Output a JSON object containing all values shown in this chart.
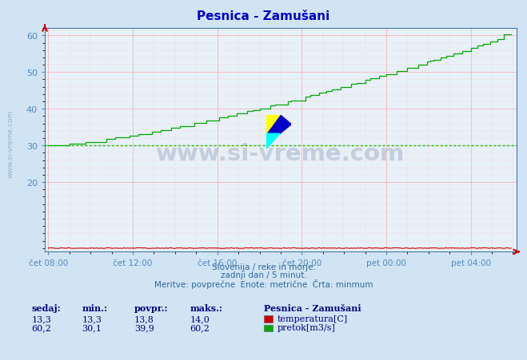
{
  "title": "Pesnica - Zamušani",
  "bg_color": "#d0e4f4",
  "plot_bg_color": "#e8f0f8",
  "title_color": "#0000cc",
  "grid_color_major": "#ff9999",
  "grid_color_minor": "#ffcccc",
  "tick_color": "#5588bb",
  "spine_color": "#4477aa",
  "arrow_color": "#cc0000",
  "ylim": [
    1,
    62
  ],
  "yticks": [
    20,
    30,
    40,
    50,
    60
  ],
  "xtick_labels": [
    "čet 08:00",
    "čet 12:00",
    "čet 16:00",
    "čet 20:00",
    "pet 00:00",
    "pet 04:00"
  ],
  "subtitle_lines": [
    "Slovenija / reke in morje.",
    "zadnji dan / 5 minut.",
    "Meritve: povprečne  Enote: metrične  Črta: minmum"
  ],
  "footer_headers": [
    "sedaj:",
    "min.:",
    "povpr.:",
    "maks.:"
  ],
  "footer_temp": [
    "13,3",
    "13,3",
    "13,8",
    "14,0"
  ],
  "footer_flow": [
    "60,2",
    "30,1",
    "39,9",
    "60,2"
  ],
  "legend_title": "Pesnica - Zamušani",
  "legend_temp_label": "temperatura[C]",
  "legend_flow_label": "pretok[m3/s]",
  "temp_color": "#cc0000",
  "flow_color": "#00aa00",
  "watermark_color": "#1a3a6e",
  "watermark_alpha": 0.18,
  "side_watermark_color": "#5588aa",
  "side_watermark_alpha": 0.5,
  "min_line_color": "#00cc00",
  "min_line_value": 30.1,
  "temp_value": 2.0,
  "n_points": 264
}
